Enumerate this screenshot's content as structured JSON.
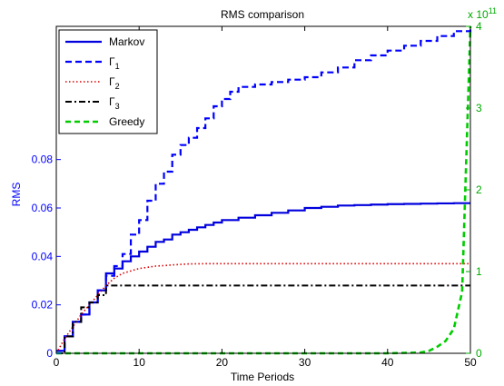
{
  "chart_data": {
    "type": "line",
    "title": "RMS comparison",
    "xlabel": "Time Periods",
    "ylabel_left": "RMS",
    "xlim": [
      0,
      50
    ],
    "ylim_left": [
      0,
      0.135
    ],
    "ylim_right": [
      0,
      4
    ],
    "right_axis_exponent_label": "x 10",
    "right_axis_exponent_value": "11",
    "x_ticks": [
      "0",
      "10",
      "20",
      "30",
      "40",
      "50"
    ],
    "y_left_ticks": [
      {
        "value": 0,
        "label": "0"
      },
      {
        "value": 0.02,
        "label": "0.02"
      },
      {
        "value": 0.04,
        "label": "0.04"
      },
      {
        "value": 0.06,
        "label": "0.06"
      },
      {
        "value": 0.08,
        "label": "0.08"
      }
    ],
    "y_right_ticks": [
      "0",
      "1",
      "2",
      "3",
      "4"
    ],
    "colors": {
      "left_axis": "#0000ff",
      "right_axis": "#00aa00"
    },
    "legend": {
      "placement": "top-left"
    },
    "series": [
      {
        "name": "Markov",
        "legend_label": "Markov",
        "axis": "left",
        "style": "solid-step",
        "color": "#0000dd",
        "x": [
          0,
          1,
          2,
          3,
          4,
          5,
          6,
          7,
          8,
          9,
          10,
          11,
          12,
          13,
          14,
          15,
          16,
          17,
          18,
          19,
          20,
          22,
          24,
          26,
          28,
          30,
          32,
          34,
          36,
          38,
          40,
          42,
          44,
          46,
          48,
          50
        ],
        "y": [
          0.001,
          0.007,
          0.013,
          0.016,
          0.021,
          0.026,
          0.033,
          0.035,
          0.038,
          0.04,
          0.042,
          0.044,
          0.046,
          0.047,
          0.049,
          0.05,
          0.051,
          0.052,
          0.053,
          0.054,
          0.055,
          0.056,
          0.057,
          0.058,
          0.059,
          0.06,
          0.0605,
          0.061,
          0.0612,
          0.0614,
          0.0616,
          0.0617,
          0.0618,
          0.0619,
          0.062,
          0.062
        ]
      },
      {
        "name": "Gamma1",
        "legend_label": "Γ",
        "legend_sub": "1",
        "axis": "left",
        "style": "dashed-step",
        "color": "#0000ff",
        "x": [
          0,
          1,
          2,
          3,
          4,
          5,
          6,
          7,
          8,
          9,
          10,
          11,
          12,
          13,
          14,
          15,
          16,
          17,
          18,
          19,
          20,
          21,
          22,
          24,
          26,
          28,
          30,
          32,
          34,
          36,
          38,
          40,
          42,
          44,
          46,
          48,
          50
        ],
        "y": [
          0.001,
          0.007,
          0.013,
          0.016,
          0.021,
          0.026,
          0.032,
          0.036,
          0.041,
          0.049,
          0.055,
          0.063,
          0.07,
          0.075,
          0.082,
          0.086,
          0.089,
          0.093,
          0.097,
          0.102,
          0.105,
          0.108,
          0.11,
          0.111,
          0.112,
          0.113,
          0.114,
          0.116,
          0.118,
          0.121,
          0.123,
          0.125,
          0.127,
          0.129,
          0.131,
          0.133,
          0.134
        ]
      },
      {
        "name": "Gamma2",
        "legend_label": "Γ",
        "legend_sub": "2",
        "axis": "left",
        "style": "dotted",
        "color": "#dd0000",
        "x": [
          0,
          1,
          2,
          3,
          4,
          5,
          6,
          7,
          8,
          9,
          10,
          11,
          12,
          13,
          14,
          15,
          16,
          18,
          20,
          25,
          30,
          35,
          40,
          45,
          50
        ],
        "y": [
          0,
          0.006,
          0.011,
          0.016,
          0.02,
          0.024,
          0.028,
          0.031,
          0.033,
          0.034,
          0.035,
          0.0355,
          0.036,
          0.0362,
          0.0365,
          0.0367,
          0.0369,
          0.037,
          0.037,
          0.037,
          0.037,
          0.037,
          0.037,
          0.037,
          0.037
        ]
      },
      {
        "name": "Gamma3",
        "legend_label": "Γ",
        "legend_sub": "3",
        "axis": "left",
        "style": "dashdot-step",
        "color": "#000000",
        "x": [
          0,
          1,
          2,
          3,
          4,
          5,
          6,
          7,
          8,
          9,
          10,
          20,
          30,
          40,
          50
        ],
        "y": [
          0,
          0.007,
          0.013,
          0.019,
          0.021,
          0.024,
          0.028,
          0.028,
          0.028,
          0.028,
          0.028,
          0.028,
          0.028,
          0.028,
          0.028
        ]
      },
      {
        "name": "Greedy",
        "legend_label": "Greedy",
        "axis": "right",
        "style": "dashed",
        "color": "#00cc00",
        "x": [
          0,
          10,
          20,
          30,
          40,
          44,
          45,
          46,
          47,
          48,
          49,
          50
        ],
        "y": [
          0,
          0,
          0,
          0,
          0,
          0.01,
          0.03,
          0.08,
          0.15,
          0.3,
          0.75,
          4.0
        ]
      }
    ]
  }
}
